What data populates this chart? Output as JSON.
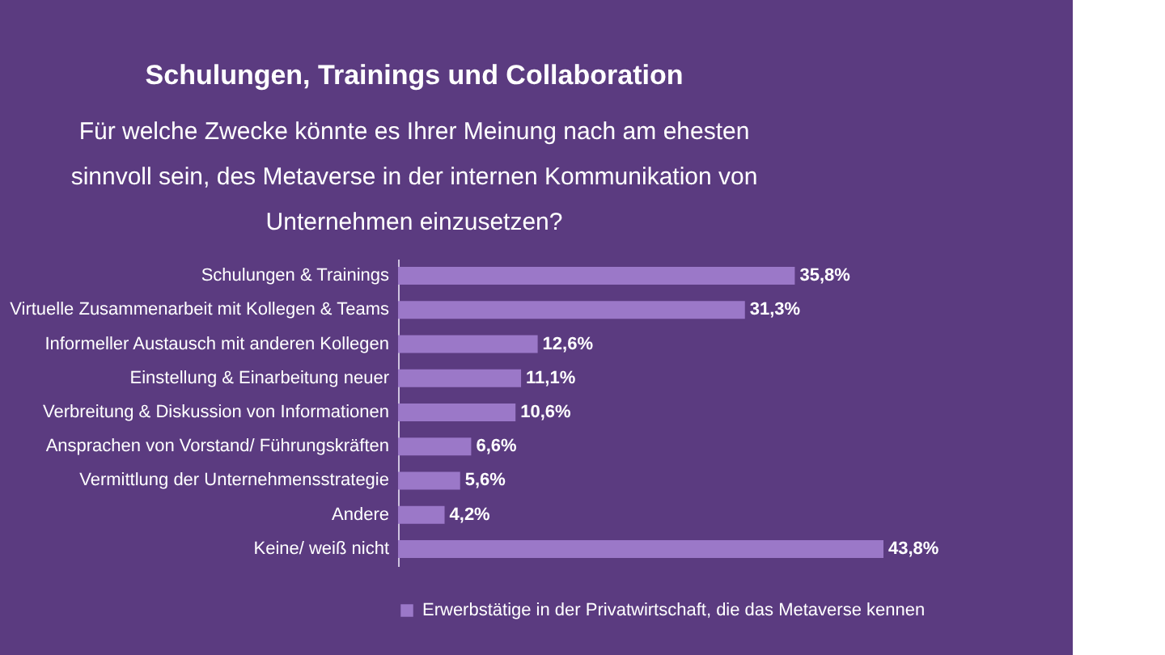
{
  "chart_data": {
    "type": "bar",
    "orientation": "horizontal",
    "title": "Schulungen, Trainings und Collaboration",
    "subtitle": "Für welche Zwecke könnte es Ihrer Meinung nach am ehesten sinnvoll sein, des Metaverse in der internen Kommunikation von Unternehmen einzusetzen?",
    "categories": [
      "Schulungen & Trainings",
      "Virtuelle Zusammenarbeit mit Kollegen & Teams",
      "Informeller Austausch mit anderen Kollegen",
      "Einstellung & Einarbeitung neuer",
      "Verbreitung & Diskussion von Informationen",
      "Ansprachen von Vorstand/ Führungskräften",
      "Vermittlung der Unternehmensstrategie",
      "Andere",
      "Keine/ weiß nicht"
    ],
    "series": [
      {
        "name": "Erwerbstätige in der Privatwirtschaft, die das Metaverse kennen",
        "color": "#9b78c8",
        "values": [
          35.8,
          31.3,
          12.6,
          11.1,
          10.6,
          6.6,
          5.6,
          4.2,
          43.8
        ],
        "value_labels": [
          "35,8%",
          "31,3%",
          "12,6%",
          "11,1%",
          "10,6%",
          "6,6%",
          "5,6%",
          "4,2%",
          "43,8%"
        ]
      }
    ],
    "legend": "bottom"
  }
}
